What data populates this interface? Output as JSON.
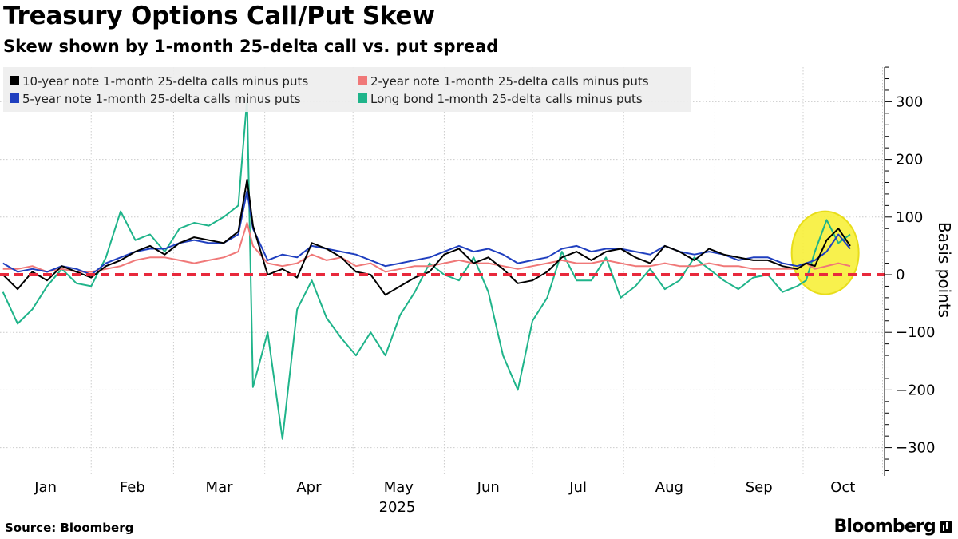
{
  "title": "Treasury Options Call/Put Skew",
  "subtitle": "Skew shown by 1-month 25-delta call vs. put spread",
  "source": "Source: Bloomberg",
  "brand": "Bloomberg",
  "chart_data": {
    "type": "line",
    "ylabel": "Basis points",
    "xlabel": "2025",
    "ylim": [
      -350,
      370
    ],
    "yticks": [
      300,
      200,
      100,
      0,
      -100,
      -200,
      -300
    ],
    "xticks": [
      "Jan",
      "Feb",
      "Mar",
      "Apr",
      "May",
      "Jun",
      "Jul",
      "Aug",
      "Sep",
      "Oct"
    ],
    "grid": true,
    "legend_position": "top-left",
    "reference_line": {
      "y": 0,
      "style": "dashed",
      "color": "#e8293c"
    },
    "highlight": {
      "shape": "ellipse",
      "color": "#f7f03a",
      "around": "Oct"
    },
    "series": [
      {
        "name": "10-year note 1-month 25-delta calls minus puts",
        "color": "#000000",
        "x": [
          1,
          6,
          11,
          16,
          21,
          26,
          31,
          36,
          41,
          46,
          51,
          56,
          61,
          66,
          71,
          76,
          81,
          84,
          86,
          91,
          96,
          101,
          106,
          111,
          116,
          121,
          126,
          131,
          136,
          141,
          146,
          151,
          156,
          161,
          166,
          171,
          176,
          181,
          186,
          191,
          196,
          201,
          206,
          211,
          216,
          221,
          226,
          231,
          236,
          241,
          246,
          251,
          256,
          261,
          266,
          271,
          274,
          277,
          281,
          285,
          289
        ],
        "values": [
          0,
          -25,
          5,
          -10,
          15,
          5,
          -5,
          15,
          25,
          40,
          50,
          35,
          55,
          65,
          60,
          55,
          75,
          165,
          85,
          0,
          10,
          -5,
          55,
          45,
          30,
          5,
          0,
          -35,
          -20,
          -5,
          5,
          35,
          45,
          20,
          30,
          10,
          -15,
          -10,
          5,
          30,
          40,
          25,
          40,
          45,
          30,
          20,
          50,
          40,
          25,
          45,
          35,
          30,
          25,
          25,
          15,
          10,
          20,
          15,
          60,
          80,
          50
        ]
      },
      {
        "name": "5-year note 1-month 25-delta calls minus puts",
        "color": "#1f3fbf",
        "x": [
          1,
          6,
          11,
          16,
          21,
          26,
          31,
          36,
          41,
          46,
          51,
          56,
          61,
          66,
          71,
          76,
          81,
          84,
          86,
          91,
          96,
          101,
          106,
          111,
          116,
          121,
          126,
          131,
          136,
          141,
          146,
          151,
          156,
          161,
          166,
          171,
          176,
          181,
          186,
          191,
          196,
          201,
          206,
          211,
          216,
          221,
          226,
          231,
          236,
          241,
          246,
          251,
          256,
          261,
          266,
          271,
          274,
          277,
          281,
          285,
          289
        ],
        "values": [
          20,
          5,
          10,
          5,
          15,
          10,
          0,
          20,
          30,
          40,
          45,
          45,
          55,
          60,
          55,
          55,
          70,
          145,
          80,
          25,
          35,
          30,
          50,
          45,
          40,
          35,
          25,
          15,
          20,
          25,
          30,
          40,
          50,
          40,
          45,
          35,
          20,
          25,
          30,
          45,
          50,
          40,
          45,
          45,
          40,
          35,
          50,
          40,
          35,
          40,
          35,
          25,
          30,
          30,
          20,
          15,
          20,
          25,
          40,
          70,
          45
        ]
      },
      {
        "name": "2-year note 1-month 25-delta calls minus puts",
        "color": "#f07878",
        "x": [
          1,
          6,
          11,
          16,
          21,
          26,
          31,
          36,
          41,
          46,
          51,
          56,
          61,
          66,
          71,
          76,
          81,
          84,
          86,
          91,
          96,
          101,
          106,
          111,
          116,
          121,
          126,
          131,
          136,
          141,
          146,
          151,
          156,
          161,
          166,
          171,
          176,
          181,
          186,
          191,
          196,
          201,
          206,
          211,
          216,
          221,
          226,
          231,
          236,
          241,
          246,
          251,
          256,
          261,
          266,
          271,
          274,
          277,
          281,
          285,
          289
        ],
        "values": [
          10,
          10,
          15,
          5,
          10,
          5,
          5,
          10,
          15,
          25,
          30,
          30,
          25,
          20,
          25,
          30,
          40,
          90,
          50,
          20,
          15,
          20,
          35,
          25,
          30,
          15,
          20,
          5,
          10,
          15,
          15,
          20,
          25,
          20,
          20,
          15,
          10,
          15,
          20,
          25,
          20,
          20,
          25,
          20,
          15,
          15,
          20,
          15,
          15,
          20,
          15,
          15,
          10,
          10,
          10,
          10,
          20,
          10,
          15,
          20,
          15
        ]
      },
      {
        "name": "Long bond 1-month 25-delta calls minus puts",
        "color": "#1fb48a",
        "x": [
          1,
          6,
          11,
          16,
          21,
          26,
          31,
          36,
          41,
          46,
          51,
          56,
          61,
          66,
          71,
          76,
          81,
          84,
          86,
          91,
          96,
          101,
          106,
          111,
          116,
          121,
          126,
          131,
          136,
          141,
          146,
          151,
          156,
          161,
          166,
          171,
          176,
          181,
          186,
          191,
          196,
          201,
          206,
          211,
          216,
          221,
          226,
          231,
          236,
          241,
          246,
          251,
          256,
          261,
          266,
          271,
          274,
          277,
          281,
          285,
          289
        ],
        "values": [
          -30,
          -85,
          -60,
          -20,
          10,
          -15,
          -20,
          30,
          110,
          60,
          70,
          40,
          80,
          90,
          85,
          100,
          120,
          305,
          -195,
          -100,
          -285,
          -60,
          -10,
          -75,
          -110,
          -140,
          -100,
          -140,
          -70,
          -30,
          20,
          0,
          -10,
          30,
          -30,
          -140,
          -200,
          -80,
          -40,
          40,
          -10,
          -10,
          30,
          -40,
          -20,
          10,
          -25,
          -10,
          30,
          10,
          -10,
          -25,
          -5,
          0,
          -30,
          -20,
          -10,
          40,
          95,
          55,
          70
        ]
      }
    ]
  }
}
